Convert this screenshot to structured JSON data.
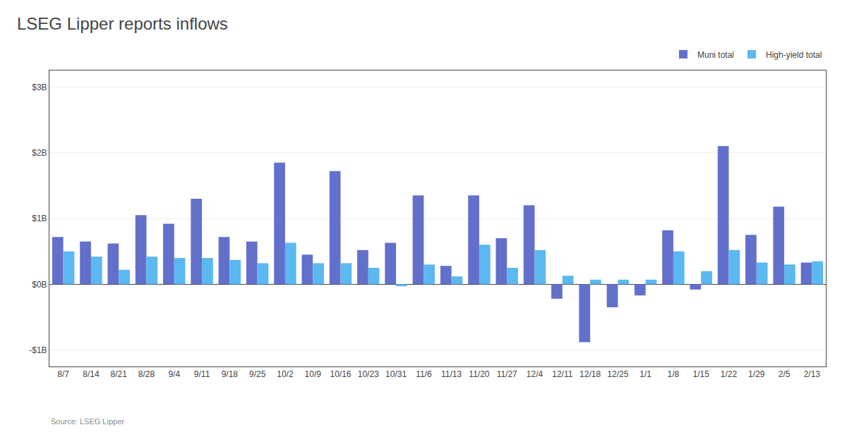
{
  "chart_data": {
    "type": "bar",
    "title": "LSEG Lipper reports inflows",
    "source": "Source: LSEG Lipper",
    "categories": [
      "8/7",
      "8/14",
      "8/21",
      "8/28",
      "9/4",
      "9/11",
      "9/18",
      "9/25",
      "10/2",
      "10/9",
      "10/16",
      "10/23",
      "10/31",
      "11/6",
      "11/13",
      "11/20",
      "11/27",
      "12/4",
      "12/11",
      "12/18",
      "12/25",
      "1/1",
      "1/8",
      "1/15",
      "1/22",
      "1/29",
      "2/5",
      "2/13"
    ],
    "series": [
      {
        "name": "Muni total",
        "color": "#6270CC",
        "values": [
          0.72,
          0.65,
          0.62,
          1.05,
          0.92,
          1.3,
          0.72,
          0.65,
          1.85,
          0.45,
          1.72,
          0.52,
          0.63,
          1.35,
          0.28,
          1.35,
          0.7,
          1.2,
          -0.22,
          -0.88,
          -0.35,
          -0.17,
          0.82,
          -0.08,
          2.1,
          0.75,
          1.18,
          0.33
        ]
      },
      {
        "name": "High-yield total",
        "color": "#5BB8F0",
        "values": [
          0.5,
          0.42,
          0.22,
          0.42,
          0.4,
          0.4,
          0.37,
          0.32,
          0.63,
          0.32,
          0.32,
          0.25,
          -0.03,
          0.3,
          0.12,
          0.6,
          0.25,
          0.52,
          0.13,
          0.07,
          0.07,
          0.07,
          0.5,
          0.2,
          0.52,
          0.33,
          0.3,
          0.35
        ]
      }
    ],
    "ylim": [
      -1.25,
      3.25
    ],
    "yticks": [
      {
        "value": -1,
        "label": "-$1B"
      },
      {
        "value": 0,
        "label": "$0B"
      },
      {
        "value": 1,
        "label": "$1B"
      },
      {
        "value": 2,
        "label": "$2B"
      },
      {
        "value": 3,
        "label": "$3B"
      }
    ],
    "grid": true,
    "legend": "upper right"
  }
}
